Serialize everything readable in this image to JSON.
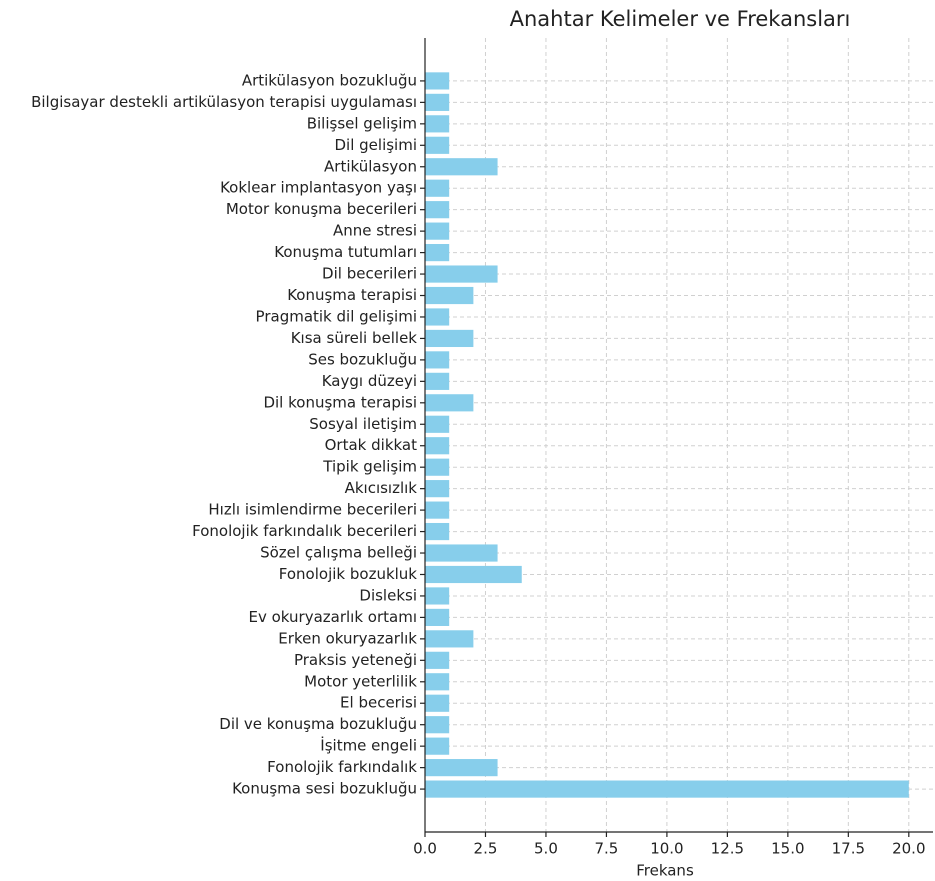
{
  "chart_data": {
    "type": "barh",
    "title": "Anahtar Kelimeler ve Frekansları",
    "xlabel": "Frekans",
    "categories": [
      "Artikülasyon bozukluğu",
      "Bilgisayar destekli artikülasyon terapisi uygulaması",
      "Bilişsel gelişim",
      "Dil gelişimi",
      "Artikülasyon",
      "Koklear implantasyon yaşı",
      "Motor konuşma becerileri",
      "Anne stresi",
      "Konuşma tutumları",
      "Dil becerileri",
      "Konuşma terapisi",
      "Pragmatik dil gelişimi",
      "Kısa süreli bellek",
      "Ses bozukluğu",
      "Kaygı düzeyi",
      "Dil konuşma terapisi",
      "Sosyal iletişim",
      "Ortak dikkat",
      "Tipik gelişim",
      "Akıcısızlık",
      "Hızlı isimlendirme becerileri",
      "Fonolojik farkındalık becerileri",
      "Sözel çalışma belleği",
      "Fonolojik bozukluk",
      "Disleksi",
      "Ev okuryazarlık ortamı",
      "Erken okuryazarlık",
      "Praksis yeteneği",
      "Motor yeterlilik",
      "El becerisi",
      "Dil ve konuşma bozukluğu",
      "İşitme engeli",
      "Fonolojik farkındalık",
      "Konuşma sesi bozukluğu"
    ],
    "values": [
      1,
      1,
      1,
      1,
      3,
      1,
      1,
      1,
      1,
      3,
      2,
      1,
      2,
      1,
      1,
      2,
      1,
      1,
      1,
      1,
      1,
      1,
      3,
      4,
      1,
      1,
      2,
      1,
      1,
      1,
      1,
      1,
      3,
      20
    ],
    "color": "#87ceeb",
    "xlim": [
      0,
      21
    ],
    "xticks": [
      {
        "value": 0,
        "label": "0.0"
      },
      2.5,
      {
        "value": 5,
        "label": "5.0"
      },
      7.5,
      {
        "value": 10,
        "label": "10.0"
      },
      12.5,
      {
        "value": 15,
        "label": "15.0"
      },
      17.5,
      {
        "value": 20,
        "label": "20.0"
      }
    ],
    "grid": true
  }
}
